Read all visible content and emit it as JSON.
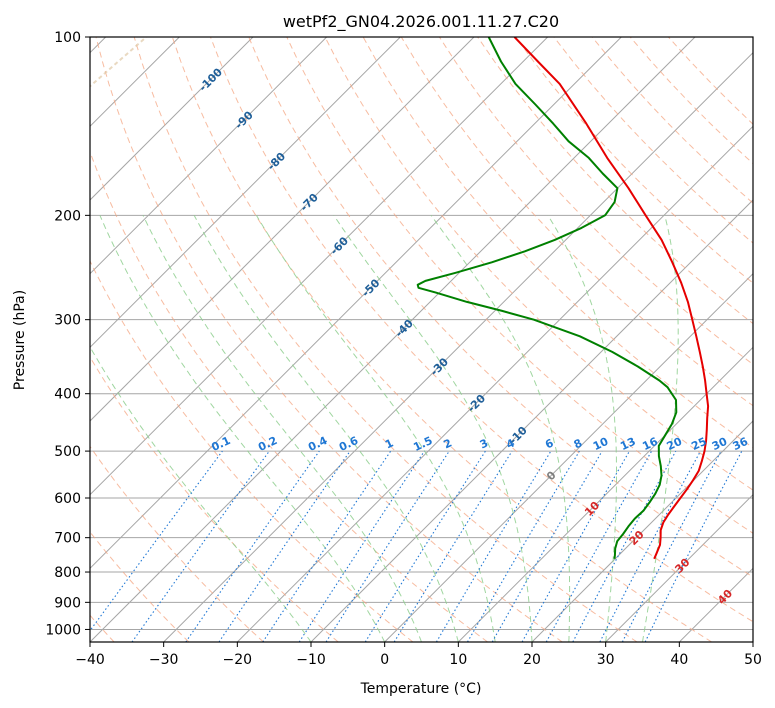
{
  "chart_data": {
    "type": "line",
    "title": "wetPf2_GN04.2026.001.11.27.C20",
    "xlabel": "Temperature (°C)",
    "ylabel": "Pressure (hPa)",
    "xlim": [
      -40,
      50
    ],
    "ylim": [
      1050,
      100
    ],
    "x_ticks": [
      -40,
      -30,
      -20,
      -10,
      0,
      10,
      20,
      30,
      40,
      50
    ],
    "x_tick_labels": [
      "−40",
      "−30",
      "−20",
      "−10",
      "0",
      "10",
      "20",
      "30",
      "40",
      "50"
    ],
    "y_ticks": [
      100,
      200,
      300,
      400,
      500,
      600,
      700,
      800,
      900,
      1000
    ],
    "y_tick_labels": [
      "100",
      "200",
      "300",
      "400",
      "500",
      "600",
      "700",
      "800",
      "900",
      "1000"
    ],
    "skew": 1.0,
    "colors": {
      "temperature": "#e60000",
      "dewpoint": "#008000",
      "isotherm": "#a6a6a6",
      "dry_adiabat": "#f4a582",
      "moist_adiabat": "#8fcf8f",
      "mixing_ratio": "#1f77d4",
      "isotherm_label": "#1f5f99",
      "dry_adiabat_label": "#d62728",
      "tan_curve": "#e0c9a6"
    },
    "series": [
      {
        "name": "Temperature",
        "pressure": [
          760,
          745,
          720,
          700,
          680,
          660,
          640,
          620,
          600,
          580,
          560,
          540,
          520,
          500,
          480,
          460,
          440,
          420,
          400,
          380,
          360,
          340,
          320,
          300,
          280,
          260,
          240,
          220,
          200,
          180,
          160,
          140,
          120,
          110,
          100
        ],
        "values": [
          25.3,
          24.9,
          24.2,
          23.3,
          22.3,
          21.6,
          21.2,
          20.9,
          20.6,
          20.3,
          19.9,
          19.4,
          18.5,
          17.5,
          16.3,
          14.9,
          13.4,
          11.9,
          10.0,
          8.0,
          5.8,
          3.4,
          0.8,
          -2.0,
          -5.0,
          -8.5,
          -12.5,
          -17.0,
          -22.5,
          -28.5,
          -35.5,
          -43.0,
          -52.0,
          -58.0,
          -64.5
        ]
      },
      {
        "name": "Dewpoint",
        "pressure": [
          760,
          750,
          730,
          710,
          690,
          670,
          650,
          630,
          610,
          590,
          570,
          550,
          530,
          510,
          490,
          470,
          450,
          430,
          410,
          390,
          380,
          360,
          340,
          320,
          300,
          290,
          280,
          270,
          265,
          262,
          258,
          250,
          240,
          230,
          220,
          210,
          200,
          190,
          180,
          170,
          160,
          150,
          140,
          130,
          120,
          110,
          100
        ],
        "values": [
          19.9,
          19.5,
          18.6,
          17.9,
          17.7,
          17.4,
          17.2,
          17.3,
          17.0,
          16.6,
          16.0,
          15.0,
          13.6,
          12.0,
          10.6,
          10.0,
          9.4,
          8.4,
          6.7,
          3.8,
          1.8,
          -3.0,
          -8.5,
          -15.0,
          -23.5,
          -29.0,
          -35.0,
          -40.5,
          -43.5,
          -44.0,
          -43.5,
          -40.5,
          -37.0,
          -34.0,
          -31.5,
          -29.5,
          -28.0,
          -28.5,
          -30.0,
          -34.0,
          -38.0,
          -43.0,
          -47.5,
          -52.5,
          -58.0,
          -63.0,
          -68.0
        ]
      }
    ],
    "isotherm_labels": [
      "-100",
      "-90",
      "-80",
      "-70",
      "-60",
      "-50",
      "-40",
      "-30",
      "-20",
      "-10",
      "0",
      "10",
      "20",
      "30",
      "40"
    ],
    "isotherm_label_values": [
      -100,
      -90,
      -80,
      -70,
      -60,
      -50,
      -40,
      -30,
      -20,
      -10,
      0,
      10,
      20,
      30,
      40
    ],
    "mixing_ratio_labels": [
      "0.1",
      "0.2",
      "0.4",
      "0.6",
      "1",
      "1.5",
      "2",
      "3",
      "4",
      "6",
      "8",
      "10",
      "13",
      "16",
      "20",
      "25",
      "30",
      "36"
    ],
    "mixing_ratio_values": [
      0.1,
      0.2,
      0.4,
      0.6,
      1,
      1.5,
      2,
      3,
      4,
      6,
      8,
      10,
      13,
      16,
      20,
      25,
      30,
      36
    ],
    "dry_adiabat_theta_c": [
      -40,
      -30,
      -20,
      -10,
      0,
      10,
      20,
      30,
      40,
      50,
      60,
      70,
      80,
      90,
      100,
      110,
      120,
      130,
      140,
      150,
      160,
      170
    ],
    "moist_adiabat_start_c": [
      -10,
      0,
      5,
      10,
      15,
      20,
      25,
      30,
      35
    ]
  }
}
